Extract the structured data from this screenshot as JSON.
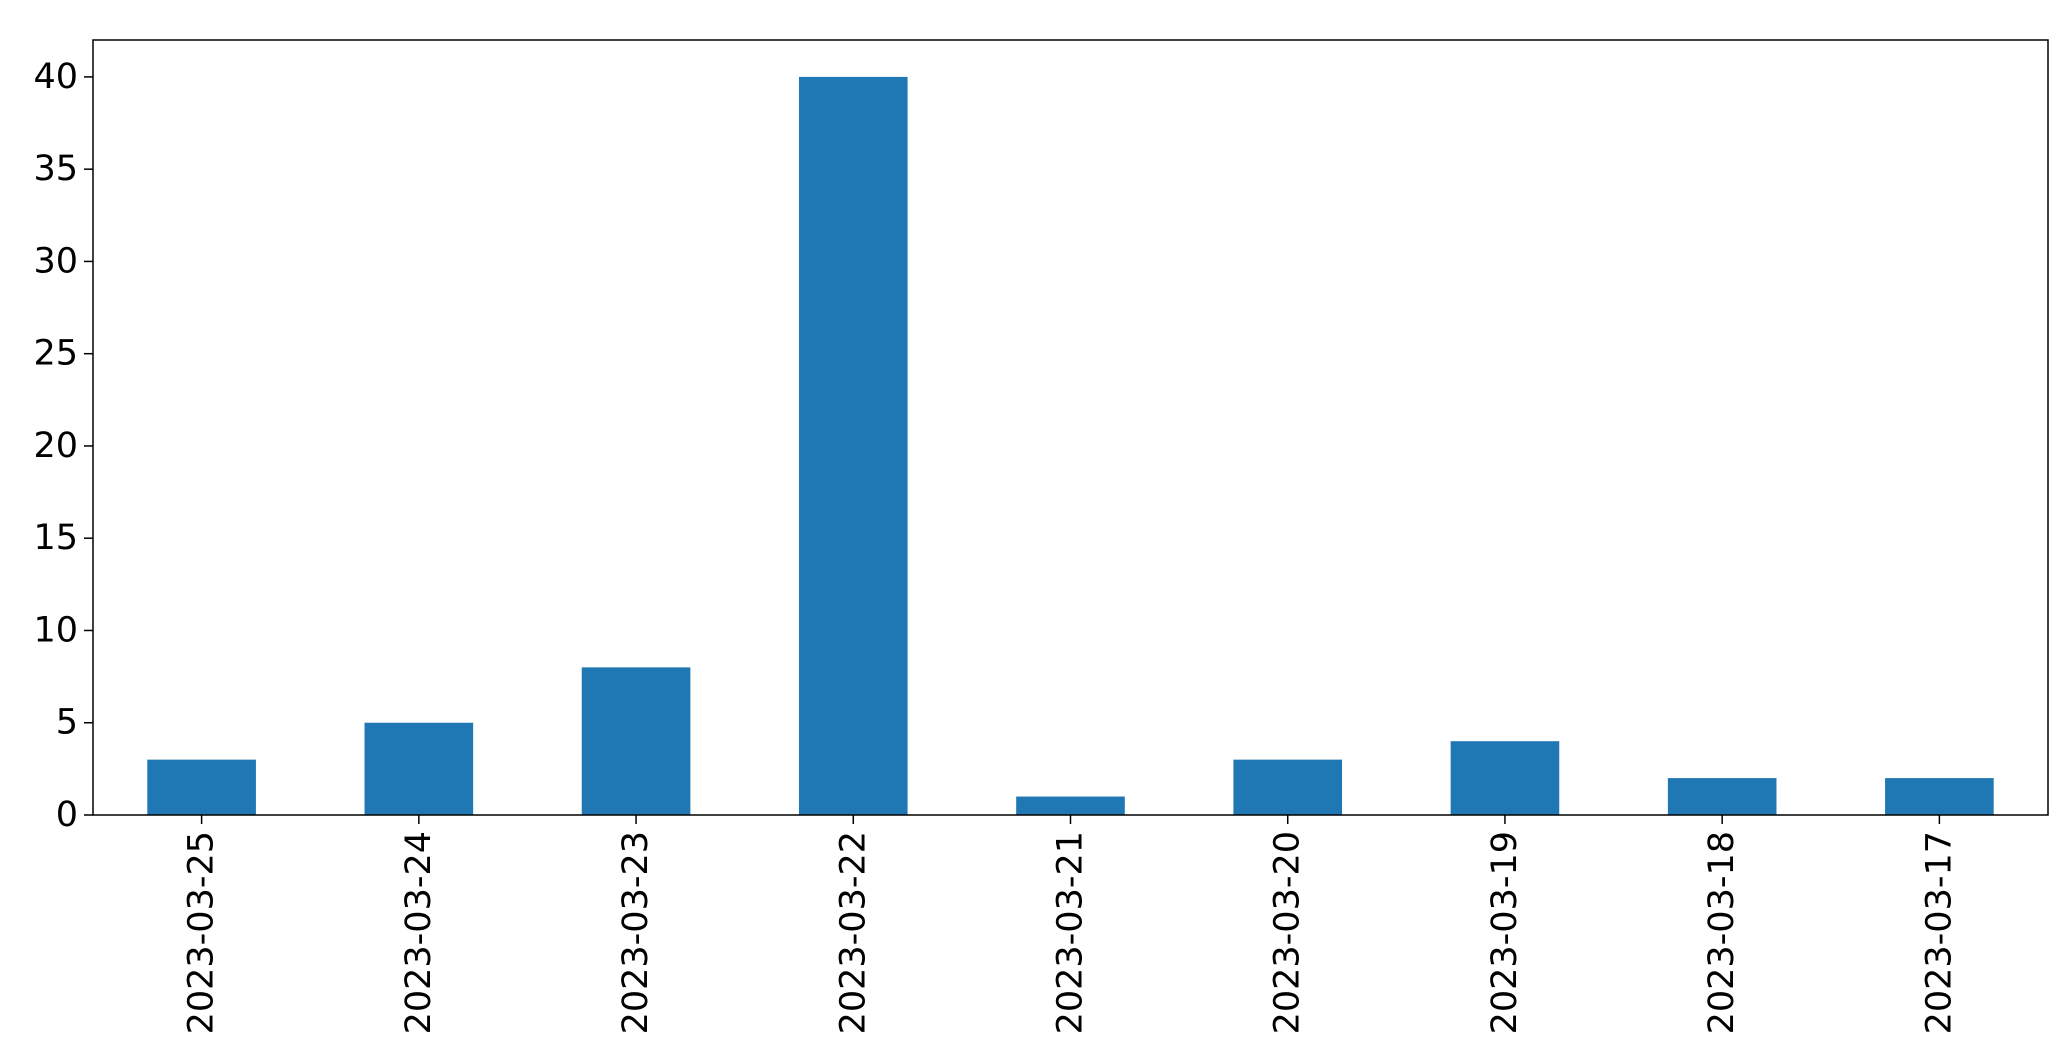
{
  "chart_data": {
    "type": "bar",
    "title": "",
    "xlabel": "",
    "ylabel": "",
    "categories": [
      "2023-03-25",
      "2023-03-24",
      "2023-03-23",
      "2023-03-22",
      "2023-03-21",
      "2023-03-20",
      "2023-03-19",
      "2023-03-18",
      "2023-03-17"
    ],
    "values": [
      3,
      5,
      8,
      40,
      1,
      3,
      4,
      2,
      2
    ],
    "ylim": [
      0,
      42
    ],
    "yticks": [
      0,
      5,
      10,
      15,
      20,
      25,
      30,
      35,
      40
    ],
    "grid": false,
    "legend": "none",
    "bar_color": "#1f77b4",
    "x_tick_rotation": "vertical"
  }
}
